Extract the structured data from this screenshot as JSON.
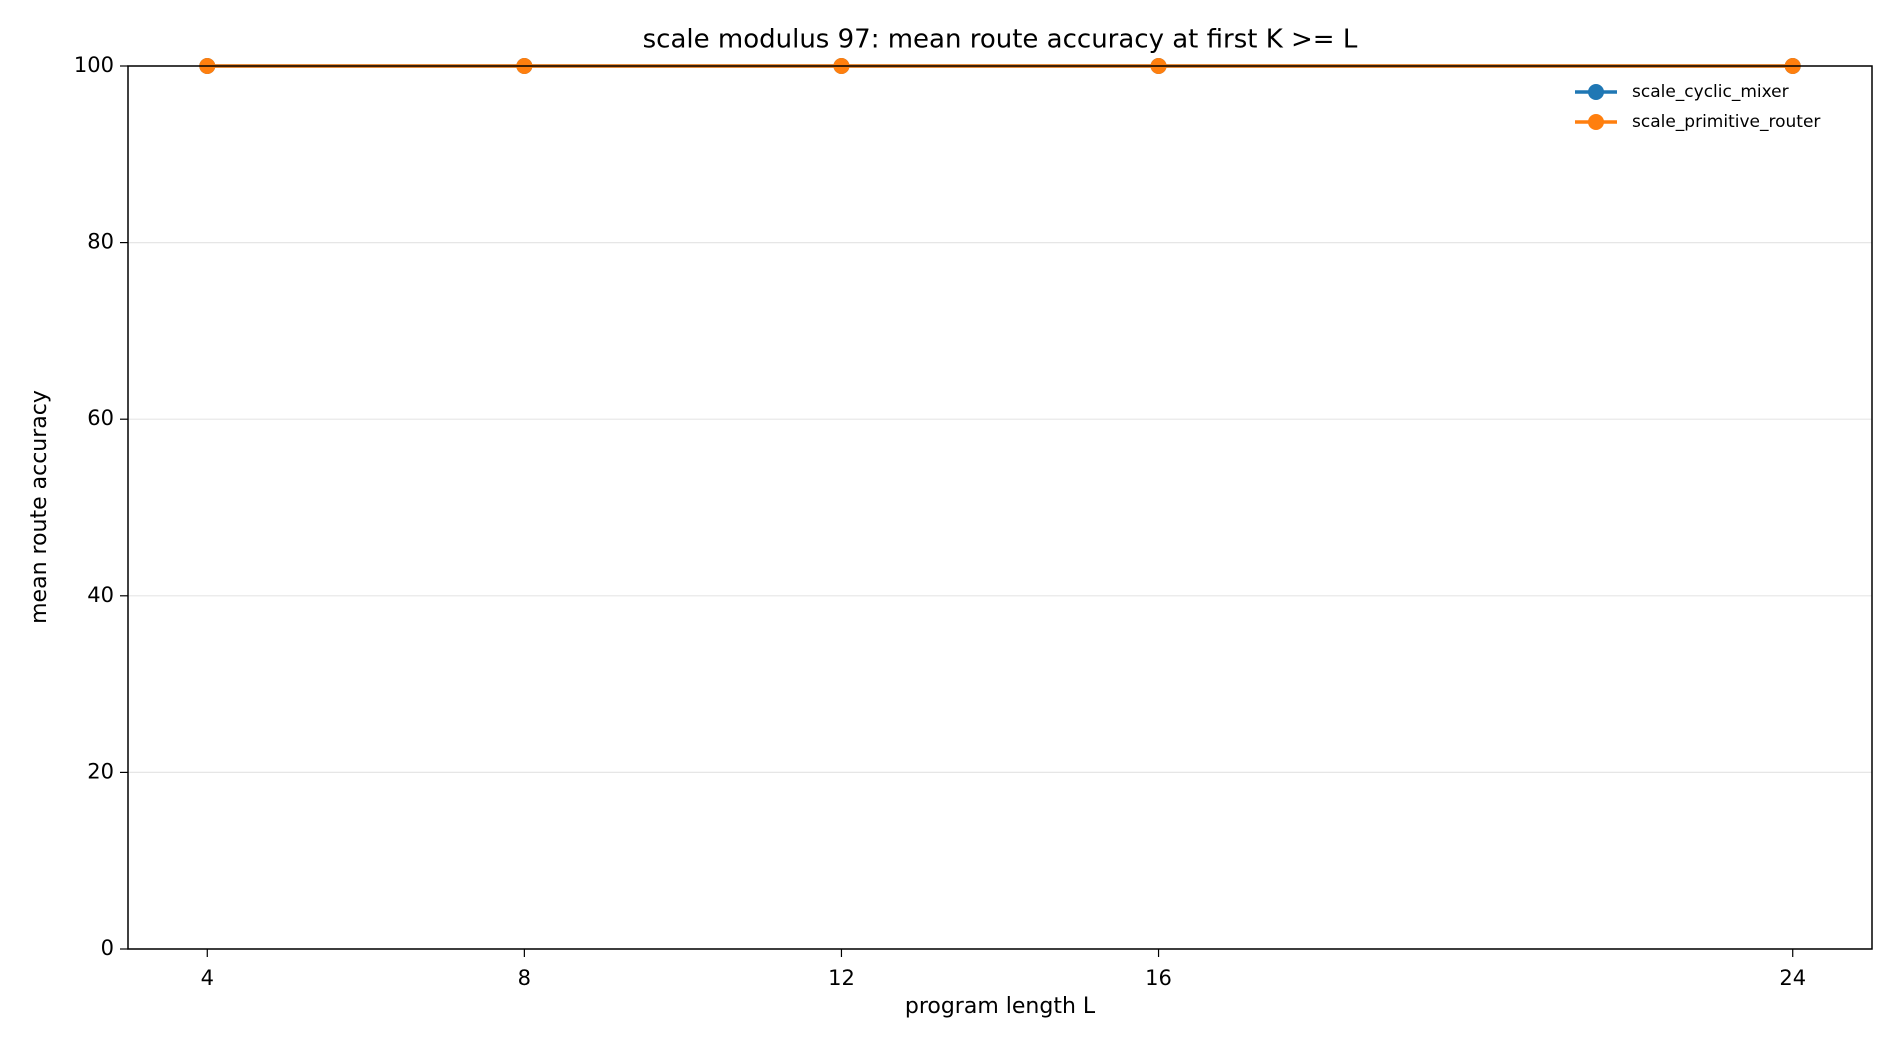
{
  "chart_data": {
    "type": "line",
    "title": "scale modulus 97: mean route accuracy at first K >= L",
    "x_label": "program length L",
    "y_label": "mean route accuracy",
    "x": [
      4,
      8,
      12,
      16,
      24
    ],
    "series": [
      {
        "name": "scale_cyclic_mixer",
        "color": "#1f77b4",
        "values": [
          100,
          100,
          100,
          100,
          100
        ]
      },
      {
        "name": "scale_primitive_router",
        "color": "#ff7f0e",
        "values": [
          100,
          100,
          100,
          100,
          100
        ]
      }
    ],
    "xlim": [
      3,
      25
    ],
    "xticks": [
      4,
      8,
      12,
      16,
      24
    ],
    "ylim": [
      0,
      100
    ],
    "yticks": [
      0,
      20,
      40,
      60,
      80,
      100
    ],
    "grid": true,
    "legend": "upper right"
  }
}
